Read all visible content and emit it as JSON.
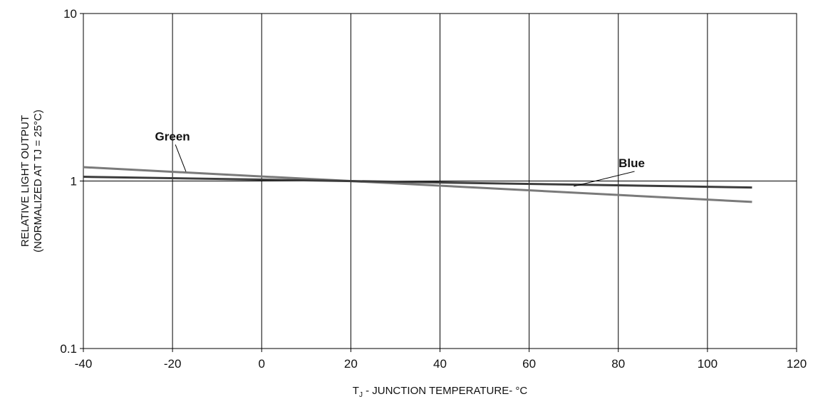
{
  "chart_data": {
    "type": "line",
    "title": "",
    "xlabel_main": "T",
    "xlabel_sub": "J",
    "xlabel_rest": " - JUNCTION TEMPERATURE- °C",
    "ylabel_line1": "RELATIVE LIGHT OUTPUT",
    "ylabel_line2": "(NORMALIZED AT TJ = 25°C)",
    "xlim": [
      -40,
      120
    ],
    "ylim": [
      0.1,
      10
    ],
    "yscale": "log",
    "grid": true,
    "xticks": [
      -40,
      -20,
      0,
      20,
      40,
      60,
      80,
      100,
      120
    ],
    "xtick_labels": [
      "-40",
      "-20",
      "0",
      "20",
      "40",
      "60",
      "80",
      "100",
      "120"
    ],
    "yticks": [
      0.1,
      1,
      10
    ],
    "ytick_labels": [
      "0.1",
      "1",
      "10"
    ],
    "series": [
      {
        "name": "Green",
        "color": "#7a7a7a",
        "x": [
          -40,
          110
        ],
        "y": [
          1.21,
          0.75
        ],
        "annotation": {
          "label": "Green",
          "text_x": -20,
          "text_y": 1.75,
          "point_x": -17,
          "point_y": 1.14
        }
      },
      {
        "name": "Blue",
        "color": "#3c3c3c",
        "x": [
          -40,
          110
        ],
        "y": [
          1.06,
          0.915
        ],
        "annotation": {
          "label": "Blue",
          "text_x": 83,
          "text_y": 1.21,
          "point_x": 70,
          "point_y": 0.93
        }
      }
    ]
  }
}
